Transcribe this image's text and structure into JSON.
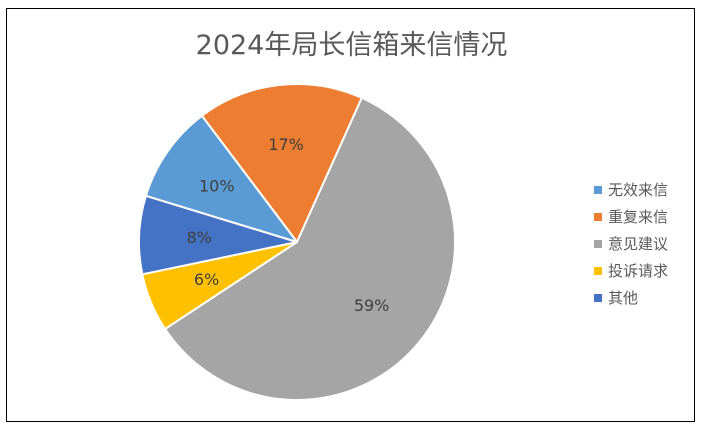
{
  "chart_data": {
    "type": "pie",
    "title": "2024年局长信箱来信情况",
    "slices": [
      {
        "name": "重复来信",
        "value": 17,
        "label": "17%",
        "color": "#ED7D31"
      },
      {
        "name": "意见建议",
        "value": 59,
        "label": "59%",
        "color": "#A5A5A5"
      },
      {
        "name": "投诉请求",
        "value": 6,
        "label": "6%",
        "color": "#FFC000"
      },
      {
        "name": "其他",
        "value": 8,
        "label": "8%",
        "color": "#4472C4"
      },
      {
        "name": "无效来信",
        "value": 10,
        "label": "10%",
        "color": "#5B9BD5"
      }
    ],
    "legend": [
      {
        "name": "无效来信",
        "color": "#5B9BD5"
      },
      {
        "name": "重复来信",
        "color": "#ED7D31"
      },
      {
        "name": "意见建议",
        "color": "#A5A5A5"
      },
      {
        "name": "投诉请求",
        "color": "#FFC000"
      },
      {
        "name": "其他",
        "color": "#4472C4"
      }
    ],
    "legend_position": "right"
  }
}
